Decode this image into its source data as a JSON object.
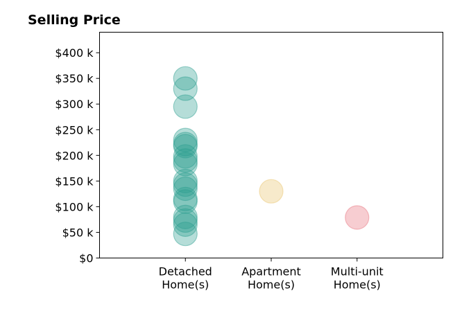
{
  "chart_data": {
    "type": "scatter",
    "title": "Selling Price",
    "xlabel": "",
    "ylabel": "",
    "categories": [
      "Detached\nHome(s)",
      "Apartment\nHome(s)",
      "Multi-unit\nHome(s)"
    ],
    "x_range": [
      -1,
      3
    ],
    "ylim": [
      0,
      440000
    ],
    "y_ticks": [
      0,
      50000,
      100000,
      150000,
      200000,
      250000,
      300000,
      350000,
      400000
    ],
    "y_tick_labels": [
      "$0",
      "$50 k",
      "$100 k",
      "$150 k",
      "$200 k",
      "$250 k",
      "$300 k",
      "$350 k",
      "$400 k"
    ],
    "grid": false,
    "legend": "none",
    "series": [
      {
        "category": "Detached\nHome(s)",
        "color": "#2a9d8f",
        "values": [
          350000,
          330000,
          295000,
          230000,
          222000,
          218000,
          198000,
          190000,
          183000,
          150000,
          143000,
          135000,
          115000,
          110000,
          80000,
          73000,
          65000,
          47000
        ]
      },
      {
        "category": "Apartment\nHome(s)",
        "color": "#e9c46a",
        "values": [
          130000
        ]
      },
      {
        "category": "Multi-unit\nHome(s)",
        "color": "#e76f7a",
        "values": [
          79000
        ]
      }
    ]
  }
}
